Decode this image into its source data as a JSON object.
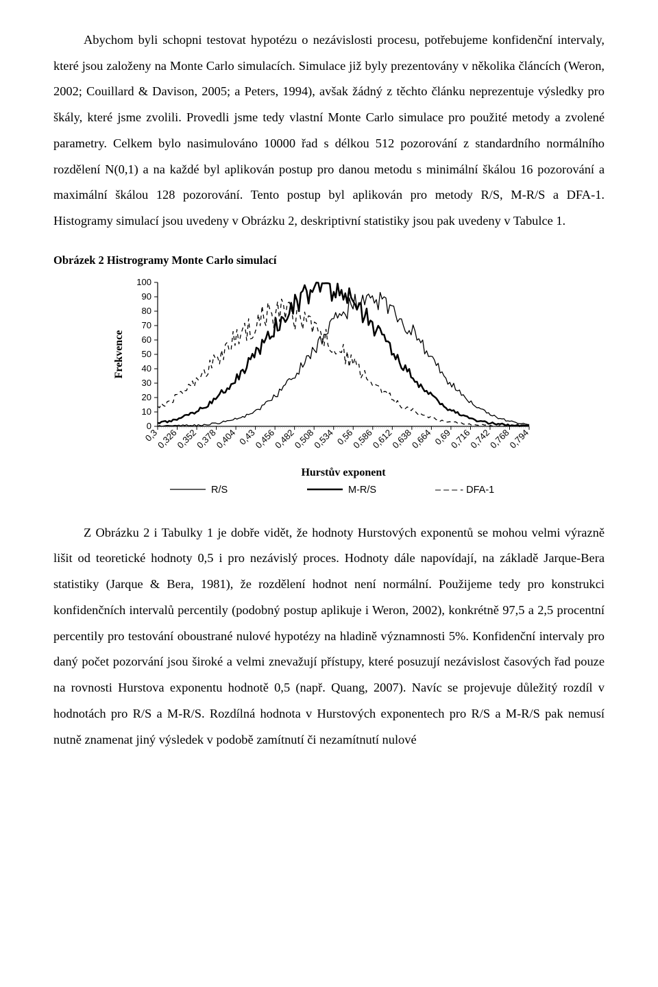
{
  "para1": "Abychom byli schopni testovat hypotézu o nezávislosti procesu, potřebujeme konfidenční intervaly, které jsou založeny na Monte Carlo simulacích. Simulace již byly prezentovány v několika článcích (Weron, 2002; Couillard & Davison, 2005; a Peters, 1994), avšak žádný z těchto článku neprezentuje výsledky pro škály, které jsme zvolili. Provedli jsme tedy vlastní Monte Carlo simulace pro použité metody a zvolené parametry. Celkem bylo nasimulováno 10000 řad s délkou 512 pozorování z standardního normálního rozdělení N(0,1) a na každé byl aplikován postup pro danou metodu s minimální škálou 16 pozorování a maximální škálou 128 pozorování. Tento postup byl aplikován pro metody R/S, M-R/S a DFA-1. Histogramy simulací jsou uvedeny v Obrázku 2, deskriptivní statistiky jsou pak uvedeny v Tabulce 1.",
  "fig_caption": "Obrázek 2 Histrogramy Monte Carlo simulací",
  "para2": "Z Obrázku 2 i Tabulky 1 je dobře vidět, že hodnoty Hurstových exponentů se mohou velmi výrazně lišit od teoretické hodnoty 0,5 i pro nezávislý proces. Hodnoty dále napovídají, na základě Jarque-Bera statistiky (Jarque & Bera, 1981), že rozdělení hodnot není normální. Použijeme tedy pro konstrukci konfidenčních intervalů percentily (podobný postup aplikuje i Weron, 2002), konkrétně 97,5 a 2,5 procentní percentily pro testování oboustrané nulové hypotézy na hladině významnosti 5%. Konfidenční intervaly pro daný počet pozorvání jsou široké a velmi znevažují přístupy, které posuzují nezávislost časových řad pouze na rovnosti Hurstova exponentu hodnotě 0,5 (např. Quang, 2007). Navíc se projevuje důležitý rozdíl v hodnotách pro R/S a M-R/S. Rozdílná hodnota v Hurstových exponentech pro R/S a M-R/S pak nemusí nutně znamenat jiný výsledek v podobě zamítnutí či nezamítnutí nulové",
  "chart": {
    "type": "line-histogram",
    "ylabel": "Frekvence",
    "xlabel": "Hurstův exponent",
    "ylim": [
      0,
      100
    ],
    "ytick_step": 10,
    "x_categories": [
      "0,3",
      "0,326",
      "0,352",
      "0,378",
      "0,404",
      "0,43",
      "0,456",
      "0,482",
      "0,508",
      "0,534",
      "0,56",
      "0,586",
      "0,612",
      "0,638",
      "0,664",
      "0,69",
      "0,716",
      "0,742",
      "0,768",
      "0,794"
    ],
    "background_color": "#ffffff",
    "axis_color": "#000000",
    "tick_color": "#666666",
    "tick_fontsize": 13,
    "label_fontsize": 16,
    "series": [
      {
        "name": "R/S",
        "style": "solid-thin",
        "color": "#000000",
        "width": 1.3,
        "mu": 0.585,
        "sigma": 0.075,
        "peak": 88,
        "noise": 0.08
      },
      {
        "name": "M-R/S",
        "style": "solid-thick",
        "color": "#000000",
        "width": 2.5,
        "mu": 0.525,
        "sigma": 0.082,
        "peak": 96,
        "noise": 0.08
      },
      {
        "name": "DFA-1",
        "style": "dash",
        "color": "#000000",
        "width": 1.3,
        "mu": 0.468,
        "sigma": 0.088,
        "peak": 78,
        "noise": 0.12
      }
    ],
    "legend": {
      "items": [
        "R/S",
        "M-R/S",
        "DFA-1"
      ],
      "dfa_prefix": "– – – - "
    }
  }
}
